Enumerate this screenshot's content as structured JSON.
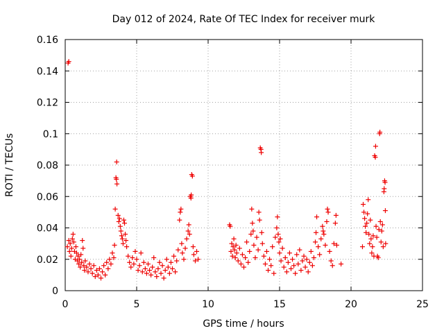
{
  "chart_data": {
    "type": "scatter",
    "title": "Day 012 of 2024, Rate Of TEC Index for receiver murk",
    "xlabel": "GPS time / hours",
    "ylabel": "ROTI / TECUs",
    "xlim": [
      0,
      25
    ],
    "ylim": [
      0,
      0.16
    ],
    "x_ticks": [
      0,
      5,
      10,
      15,
      20,
      25
    ],
    "y_ticks": [
      0,
      0.02,
      0.04,
      0.06,
      0.08,
      0.1,
      0.12,
      0.14,
      0.16
    ],
    "x_tick_labels": [
      "0",
      "5",
      "10",
      "15",
      "20",
      "25"
    ],
    "y_tick_labels": [
      "0",
      "0.02",
      "0.04",
      "0.06",
      "0.08",
      "0.1",
      "0.12",
      "0.14",
      "0.16"
    ],
    "grid": true,
    "marker": "+",
    "color": "#ee0000",
    "series": [
      {
        "name": "ROTI",
        "points": [
          [
            0.2,
            0.145
          ],
          [
            0.25,
            0.146
          ],
          [
            0.15,
            0.028
          ],
          [
            0.25,
            0.032
          ],
          [
            0.3,
            0.025
          ],
          [
            0.35,
            0.03
          ],
          [
            0.4,
            0.022
          ],
          [
            0.45,
            0.027
          ],
          [
            0.5,
            0.033
          ],
          [
            0.55,
            0.036
          ],
          [
            0.6,
            0.031
          ],
          [
            0.65,
            0.025
          ],
          [
            0.7,
            0.02
          ],
          [
            0.75,
            0.028
          ],
          [
            0.8,
            0.024
          ],
          [
            0.85,
            0.019
          ],
          [
            0.9,
            0.022
          ],
          [
            0.95,
            0.017
          ],
          [
            1.0,
            0.02
          ],
          [
            1.05,
            0.015
          ],
          [
            1.1,
            0.023
          ],
          [
            1.15,
            0.018
          ],
          [
            1.2,
            0.032
          ],
          [
            1.25,
            0.027
          ],
          [
            1.3,
            0.016
          ],
          [
            1.35,
            0.013
          ],
          [
            1.4,
            0.019
          ],
          [
            1.5,
            0.015
          ],
          [
            1.6,
            0.012
          ],
          [
            1.7,
            0.017
          ],
          [
            1.8,
            0.014
          ],
          [
            1.9,
            0.011
          ],
          [
            2.0,
            0.016
          ],
          [
            2.1,
            0.009
          ],
          [
            2.2,
            0.013
          ],
          [
            2.3,
            0.01
          ],
          [
            2.4,
            0.014
          ],
          [
            2.5,
            0.008
          ],
          [
            2.6,
            0.012
          ],
          [
            2.7,
            0.016
          ],
          [
            2.8,
            0.01
          ],
          [
            2.9,
            0.018
          ],
          [
            3.0,
            0.014
          ],
          [
            3.1,
            0.02
          ],
          [
            3.2,
            0.017
          ],
          [
            3.3,
            0.024
          ],
          [
            3.4,
            0.021
          ],
          [
            3.45,
            0.029
          ],
          [
            3.5,
            0.052
          ],
          [
            3.55,
            0.072
          ],
          [
            3.58,
            0.071
          ],
          [
            3.6,
            0.082
          ],
          [
            3.62,
            0.068
          ],
          [
            3.7,
            0.048
          ],
          [
            3.75,
            0.044
          ],
          [
            3.8,
            0.046
          ],
          [
            3.85,
            0.041
          ],
          [
            3.9,
            0.038
          ],
          [
            3.95,
            0.035
          ],
          [
            4.0,
            0.033
          ],
          [
            4.05,
            0.03
          ],
          [
            4.1,
            0.045
          ],
          [
            4.15,
            0.043
          ],
          [
            4.2,
            0.036
          ],
          [
            4.25,
            0.032
          ],
          [
            4.3,
            0.028
          ],
          [
            4.4,
            0.022
          ],
          [
            4.5,
            0.018
          ],
          [
            4.6,
            0.015
          ],
          [
            4.7,
            0.021
          ],
          [
            4.8,
            0.017
          ],
          [
            4.9,
            0.025
          ],
          [
            5.0,
            0.02
          ],
          [
            5.1,
            0.013
          ],
          [
            5.2,
            0.016
          ],
          [
            5.3,
            0.024
          ],
          [
            5.4,
            0.012
          ],
          [
            5.5,
            0.018
          ],
          [
            5.6,
            0.014
          ],
          [
            5.7,
            0.011
          ],
          [
            5.8,
            0.017
          ],
          [
            5.9,
            0.013
          ],
          [
            6.0,
            0.01
          ],
          [
            6.1,
            0.015
          ],
          [
            6.2,
            0.021
          ],
          [
            6.3,
            0.012
          ],
          [
            6.4,
            0.009
          ],
          [
            6.5,
            0.014
          ],
          [
            6.6,
            0.018
          ],
          [
            6.7,
            0.011
          ],
          [
            6.8,
            0.016
          ],
          [
            6.9,
            0.008
          ],
          [
            7.0,
            0.013
          ],
          [
            7.1,
            0.02
          ],
          [
            7.2,
            0.015
          ],
          [
            7.3,
            0.011
          ],
          [
            7.4,
            0.018
          ],
          [
            7.5,
            0.014
          ],
          [
            7.6,
            0.022
          ],
          [
            7.7,
            0.012
          ],
          [
            7.8,
            0.019
          ],
          [
            7.9,
            0.026
          ],
          [
            8.0,
            0.045
          ],
          [
            8.05,
            0.05
          ],
          [
            8.1,
            0.052
          ],
          [
            8.15,
            0.03
          ],
          [
            8.2,
            0.024
          ],
          [
            8.3,
            0.02
          ],
          [
            8.4,
            0.027
          ],
          [
            8.5,
            0.033
          ],
          [
            8.6,
            0.038
          ],
          [
            8.65,
            0.042
          ],
          [
            8.7,
            0.036
          ],
          [
            8.75,
            0.06
          ],
          [
            8.8,
            0.059
          ],
          [
            8.82,
            0.061
          ],
          [
            8.85,
            0.074
          ],
          [
            8.9,
            0.073
          ],
          [
            8.95,
            0.028
          ],
          [
            9.0,
            0.023
          ],
          [
            9.1,
            0.019
          ],
          [
            9.2,
            0.025
          ],
          [
            9.3,
            0.02
          ],
          [
            11.5,
            0.042
          ],
          [
            11.55,
            0.041
          ],
          [
            11.6,
            0.025
          ],
          [
            11.65,
            0.03
          ],
          [
            11.7,
            0.022
          ],
          [
            11.75,
            0.028
          ],
          [
            11.8,
            0.033
          ],
          [
            11.85,
            0.026
          ],
          [
            11.9,
            0.021
          ],
          [
            11.95,
            0.029
          ],
          [
            12.0,
            0.024
          ],
          [
            12.1,
            0.019
          ],
          [
            12.2,
            0.027
          ],
          [
            12.3,
            0.017
          ],
          [
            12.4,
            0.023
          ],
          [
            12.5,
            0.015
          ],
          [
            12.6,
            0.021
          ],
          [
            12.7,
            0.031
          ],
          [
            12.8,
            0.018
          ],
          [
            12.9,
            0.025
          ],
          [
            13.0,
            0.036
          ],
          [
            13.05,
            0.052
          ],
          [
            13.1,
            0.043
          ],
          [
            13.15,
            0.038
          ],
          [
            13.2,
            0.029
          ],
          [
            13.3,
            0.021
          ],
          [
            13.4,
            0.034
          ],
          [
            13.5,
            0.026
          ],
          [
            13.55,
            0.05
          ],
          [
            13.6,
            0.045
          ],
          [
            13.65,
            0.091
          ],
          [
            13.7,
            0.09
          ],
          [
            13.72,
            0.088
          ],
          [
            13.75,
            0.037
          ],
          [
            13.8,
            0.03
          ],
          [
            13.9,
            0.022
          ],
          [
            14.0,
            0.017
          ],
          [
            14.1,
            0.025
          ],
          [
            14.2,
            0.013
          ],
          [
            14.3,
            0.02
          ],
          [
            14.4,
            0.016
          ],
          [
            14.5,
            0.028
          ],
          [
            14.6,
            0.011
          ],
          [
            14.7,
            0.034
          ],
          [
            14.8,
            0.04
          ],
          [
            14.85,
            0.047
          ],
          [
            14.9,
            0.036
          ],
          [
            14.95,
            0.031
          ],
          [
            15.0,
            0.024
          ],
          [
            15.05,
            0.033
          ],
          [
            15.1,
            0.019
          ],
          [
            15.2,
            0.027
          ],
          [
            15.3,
            0.015
          ],
          [
            15.4,
            0.021
          ],
          [
            15.5,
            0.012
          ],
          [
            15.6,
            0.018
          ],
          [
            15.7,
            0.024
          ],
          [
            15.8,
            0.014
          ],
          [
            15.9,
            0.02
          ],
          [
            16.0,
            0.016
          ],
          [
            16.1,
            0.011
          ],
          [
            16.2,
            0.023
          ],
          [
            16.3,
            0.017
          ],
          [
            16.4,
            0.026
          ],
          [
            16.5,
            0.013
          ],
          [
            16.6,
            0.019
          ],
          [
            16.7,
            0.022
          ],
          [
            16.8,
            0.015
          ],
          [
            16.9,
            0.02
          ],
          [
            17.0,
            0.012
          ],
          [
            17.1,
            0.018
          ],
          [
            17.2,
            0.025
          ],
          [
            17.3,
            0.016
          ],
          [
            17.4,
            0.021
          ],
          [
            17.5,
            0.031
          ],
          [
            17.55,
            0.037
          ],
          [
            17.6,
            0.047
          ],
          [
            17.7,
            0.028
          ],
          [
            17.8,
            0.023
          ],
          [
            17.9,
            0.033
          ],
          [
            18.0,
            0.041
          ],
          [
            18.05,
            0.038
          ],
          [
            18.1,
            0.036
          ],
          [
            18.2,
            0.029
          ],
          [
            18.3,
            0.044
          ],
          [
            18.35,
            0.052
          ],
          [
            18.4,
            0.05
          ],
          [
            18.5,
            0.025
          ],
          [
            18.6,
            0.019
          ],
          [
            18.7,
            0.016
          ],
          [
            18.8,
            0.03
          ],
          [
            18.9,
            0.043
          ],
          [
            18.95,
            0.048
          ],
          [
            19.0,
            0.029
          ],
          [
            19.3,
            0.017
          ],
          [
            20.8,
            0.028
          ],
          [
            20.85,
            0.055
          ],
          [
            20.9,
            0.05
          ],
          [
            20.95,
            0.046
          ],
          [
            21.0,
            0.041
          ],
          [
            21.05,
            0.037
          ],
          [
            21.1,
            0.043
          ],
          [
            21.15,
            0.049
          ],
          [
            21.2,
            0.058
          ],
          [
            21.25,
            0.036
          ],
          [
            21.3,
            0.03
          ],
          [
            21.35,
            0.045
          ],
          [
            21.4,
            0.033
          ],
          [
            21.45,
            0.024
          ],
          [
            21.5,
            0.028
          ],
          [
            21.55,
            0.035
          ],
          [
            21.6,
            0.022
          ],
          [
            21.65,
            0.086
          ],
          [
            21.7,
            0.085
          ],
          [
            21.72,
            0.092
          ],
          [
            21.75,
            0.041
          ],
          [
            21.8,
            0.034
          ],
          [
            21.85,
            0.022
          ],
          [
            21.9,
            0.021
          ],
          [
            21.95,
            0.039
          ],
          [
            22.0,
            0.1
          ],
          [
            22.02,
            0.101
          ],
          [
            22.05,
            0.044
          ],
          [
            22.1,
            0.031
          ],
          [
            22.15,
            0.038
          ],
          [
            22.2,
            0.042
          ],
          [
            22.25,
            0.028
          ],
          [
            22.3,
            0.063
          ],
          [
            22.32,
            0.065
          ],
          [
            22.35,
            0.07
          ],
          [
            22.38,
            0.069
          ],
          [
            22.4,
            0.051
          ],
          [
            22.42,
            0.03
          ]
        ]
      }
    ]
  }
}
